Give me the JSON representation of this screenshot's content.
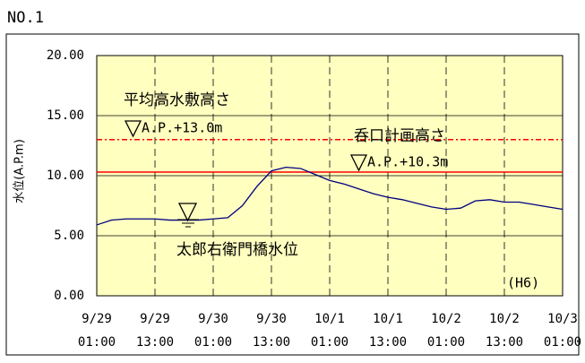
{
  "chart_data": {
    "type": "line",
    "title": "NO.1",
    "y_label": "水位(A.P.m)",
    "annotation": "太郎右衛門橋水位",
    "note": "(H6)",
    "xlim": [
      "9/29 01:00",
      "10/3 01:00"
    ],
    "xticks": [
      [
        "9/29",
        "01:00"
      ],
      [
        "9/29",
        "13:00"
      ],
      [
        "9/30",
        "01:00"
      ],
      [
        "9/30",
        "13:00"
      ],
      [
        "10/1",
        "01:00"
      ],
      [
        "10/1",
        "13:00"
      ],
      [
        "10/2",
        "01:00"
      ],
      [
        "10/2",
        "13:00"
      ],
      [
        "10/3",
        "01:00"
      ]
    ],
    "ylim": [
      0,
      20
    ],
    "yticks": [
      {
        "value": 0,
        "label": "0.00"
      },
      {
        "value": 5,
        "label": "5.00"
      },
      {
        "value": 10,
        "label": "10.00"
      },
      {
        "value": 15,
        "label": "15.00"
      },
      {
        "value": 20,
        "label": "20.00"
      }
    ],
    "grid": true,
    "background": "#ffffc0",
    "reference_lines": [
      {
        "name": "平均高水敷高さ",
        "value": 13.0,
        "value_label": "A.P.+13.0m",
        "color": "#ff0000",
        "style": "dashdot"
      },
      {
        "name": "呑口計画高さ",
        "value": 10.3,
        "value_label": "A.P.+10.3m",
        "color": "#ff0000",
        "style": "solid"
      }
    ],
    "series": [
      {
        "color": "#000080",
        "x": [
          "9/29 01:00",
          "9/29 04:00",
          "9/29 07:00",
          "9/29 10:00",
          "9/29 13:00",
          "9/29 16:00",
          "9/29 19:00",
          "9/29 22:00",
          "9/30 01:00",
          "9/30 04:00",
          "9/30 07:00",
          "9/30 10:00",
          "9/30 13:00",
          "9/30 16:00",
          "9/30 19:00",
          "9/30 22:00",
          "10/1 01:00",
          "10/1 04:00",
          "10/1 07:00",
          "10/1 10:00",
          "10/1 13:00",
          "10/1 16:00",
          "10/1 19:00",
          "10/1 22:00",
          "10/2 01:00",
          "10/2 04:00",
          "10/2 07:00",
          "10/2 10:00",
          "10/2 13:00",
          "10/2 16:00",
          "10/2 19:00",
          "10/2 22:00",
          "10/3 01:00"
        ],
        "values": [
          5.9,
          6.3,
          6.4,
          6.4,
          6.4,
          6.3,
          6.3,
          6.3,
          6.4,
          6.5,
          7.5,
          9.1,
          10.4,
          10.7,
          10.6,
          10.1,
          9.6,
          9.3,
          8.9,
          8.5,
          8.2,
          8.0,
          7.7,
          7.4,
          7.2,
          7.3,
          7.9,
          8.0,
          7.8,
          7.8,
          7.6,
          7.4,
          7.2
        ]
      }
    ]
  }
}
